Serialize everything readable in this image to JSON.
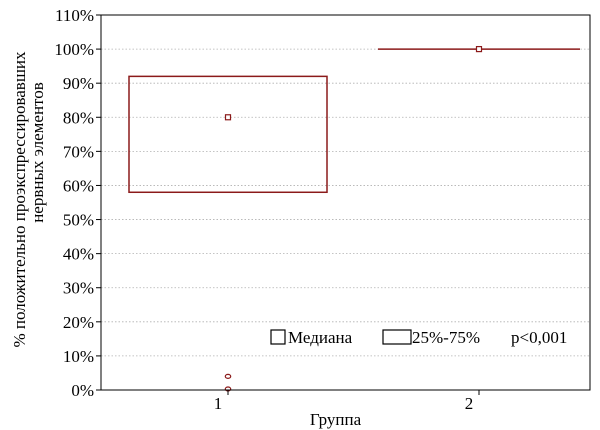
{
  "chart_data": {
    "type": "box",
    "title": "",
    "xlabel": "Группа",
    "ylabel_lines": [
      "% положительно проэкспрессировавших",
      "нервных элементов"
    ],
    "categories": [
      "1",
      "2"
    ],
    "ylim": [
      0,
      110
    ],
    "yticks": [
      0,
      10,
      20,
      30,
      40,
      50,
      60,
      70,
      80,
      90,
      100,
      110
    ],
    "ytick_labels": [
      "0%",
      "10%",
      "20%",
      "30%",
      "40%",
      "50%",
      "60%",
      "70%",
      "80%",
      "90%",
      "100%",
      "110%"
    ],
    "grid": true,
    "boxes": [
      {
        "category": "1",
        "median": 80,
        "q1": 58,
        "q3": 92,
        "outliers": [
          4,
          0
        ]
      },
      {
        "category": "2",
        "median": 100,
        "q1": 100,
        "q3": 100,
        "outliers": []
      }
    ],
    "legend": {
      "placement": "bottom-right",
      "median_label": "Медиана",
      "iqr_label": "25%-75%",
      "note": "p<0,001"
    },
    "colors": {
      "box": "#8b1a1a",
      "grid": "#b0b0b0",
      "axis": "#000000"
    }
  }
}
